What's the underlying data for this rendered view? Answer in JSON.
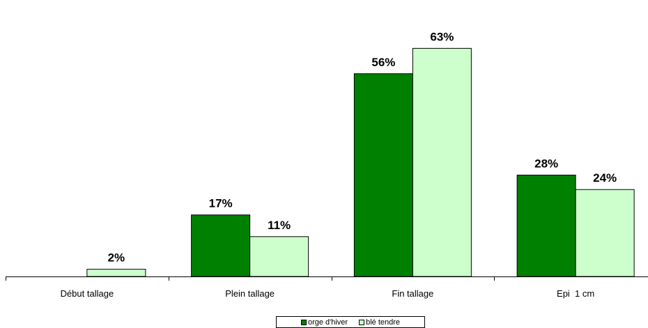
{
  "chart_data": {
    "type": "bar",
    "categories": [
      "Début tallage",
      "Plein tallage",
      "Fin tallage",
      "Epi  1 cm"
    ],
    "series": [
      {
        "name": "orge d'hiver",
        "values": [
          0,
          17,
          56,
          28
        ],
        "labels": [
          "",
          "17%",
          "56%",
          "28%"
        ],
        "color": "#008000"
      },
      {
        "name": "blé tendre",
        "values": [
          2,
          11,
          63,
          24
        ],
        "labels": [
          "2%",
          "11%",
          "63%",
          "24%"
        ],
        "color": "#CCFFCC"
      }
    ],
    "title": "",
    "xlabel": "",
    "ylabel": "",
    "ylim": [
      0,
      70
    ],
    "grid": false,
    "legend": "bottom"
  }
}
